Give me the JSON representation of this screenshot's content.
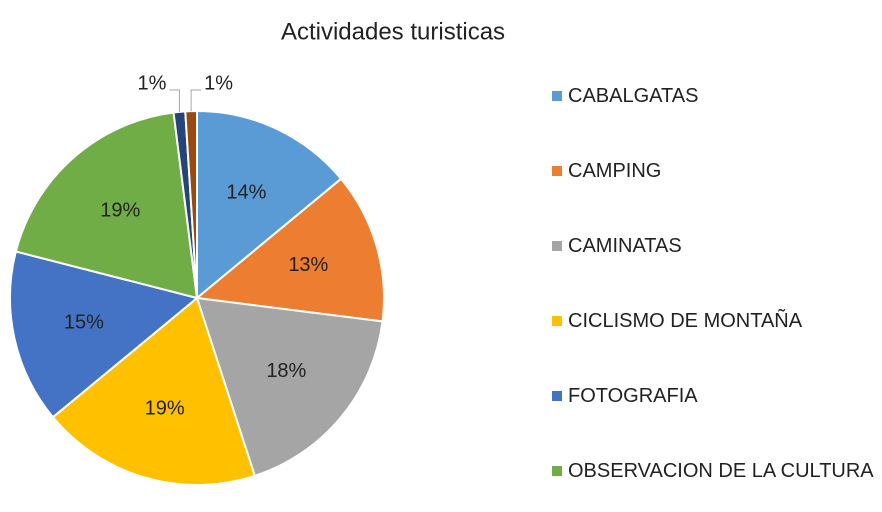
{
  "chart_data": {
    "type": "pie",
    "title": "Actividades turisticas",
    "categories": [
      "CABALGATAS",
      "CAMPING",
      "CAMINATAS",
      "CICLISMO DE MONTAÑA",
      "FOTOGRAFIA",
      "OBSERVACION DE LA CULTURA",
      null,
      null
    ],
    "values": [
      14,
      13,
      18,
      19,
      15,
      19,
      1,
      1
    ],
    "value_labels": [
      "14%",
      "13%",
      "18%",
      "19%",
      "15%",
      "19%",
      "1%",
      "1%"
    ],
    "colors": [
      "#5b9bd5",
      "#ed7d31",
      "#a5a5a5",
      "#ffc000",
      "#4472c4",
      "#70ad47",
      "#264478",
      "#9e480e"
    ],
    "legend": "right"
  }
}
